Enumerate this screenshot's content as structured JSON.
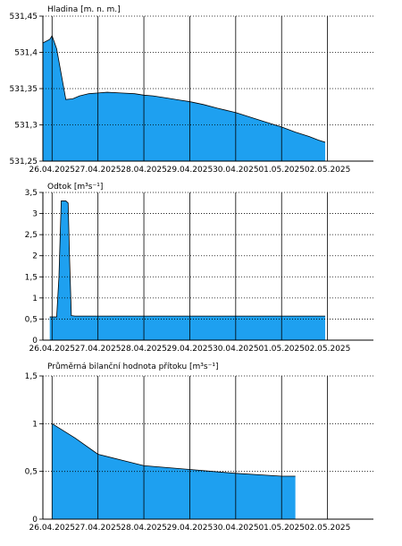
{
  "chart_data": [
    {
      "type": "area",
      "title": "Hladina [m. n. m.]",
      "x_ticks": [
        "26.04.2025",
        "27.04.2025",
        "28.04.2025",
        "29.04.2025",
        "30.04.2025",
        "01.05.2025",
        "02.05.2025"
      ],
      "y_tick_labels": [
        "531,25",
        "531,3",
        "531,35",
        "531,4",
        "531,45"
      ],
      "ylim": [
        531.25,
        531.45
      ],
      "xlim": [
        -0.2,
        7.0
      ],
      "grid": true,
      "color": "#1ea0f0",
      "x": [
        -0.2,
        -0.05,
        0.0,
        0.1,
        0.2,
        0.3,
        0.45,
        0.6,
        0.8,
        1.0,
        1.2,
        1.5,
        1.8,
        2.0,
        2.2,
        2.5,
        2.8,
        3.0,
        3.3,
        3.6,
        3.8,
        4.0,
        4.3,
        4.6,
        5.0,
        5.3,
        5.6,
        5.8,
        5.95
      ],
      "y": [
        531.413,
        531.418,
        531.423,
        531.405,
        531.37,
        531.335,
        531.336,
        531.34,
        531.343,
        531.344,
        531.345,
        531.344,
        531.343,
        531.341,
        531.34,
        531.337,
        531.334,
        531.332,
        531.328,
        531.323,
        531.32,
        531.317,
        531.311,
        531.305,
        531.297,
        531.29,
        531.284,
        531.279,
        531.276
      ]
    },
    {
      "type": "area",
      "title": "Odtok [m³s⁻¹]",
      "x_ticks": [
        "26.04.2025",
        "27.04.2025",
        "28.04.2025",
        "29.04.2025",
        "30.04.2025",
        "01.05.2025",
        "02.05.2025"
      ],
      "y_tick_labels": [
        "0",
        "0,5",
        "1",
        "1,5",
        "2",
        "2,5",
        "3",
        "3,5"
      ],
      "ylim": [
        0,
        3.5
      ],
      "xlim": [
        -0.2,
        7.0
      ],
      "grid": true,
      "color": "#1ea0f0",
      "x": [
        -0.05,
        0.0,
        0.1,
        0.15,
        0.2,
        0.3,
        0.35,
        0.38,
        0.42,
        0.5,
        1.0,
        2.0,
        3.0,
        4.0,
        5.0,
        5.95
      ],
      "y": [
        0.55,
        0.55,
        0.55,
        1.5,
        3.3,
        3.3,
        3.25,
        2.0,
        0.58,
        0.57,
        0.57,
        0.57,
        0.57,
        0.57,
        0.57,
        0.57
      ]
    },
    {
      "type": "area",
      "title": "Průměrná bilanční hodnota přítoku   [m³s⁻¹]",
      "x_ticks": [
        "26.04.2025",
        "27.04.2025",
        "28.04.2025",
        "29.04.2025",
        "30.04.2025",
        "01.05.2025",
        "02.05.2025"
      ],
      "y_tick_labels": [
        "0",
        "0,5",
        "1",
        "1,5"
      ],
      "ylim": [
        0,
        1.5
      ],
      "xlim": [
        -0.2,
        7.0
      ],
      "grid": true,
      "color": "#1ea0f0",
      "x": [
        0.0,
        0.5,
        1.0,
        1.5,
        2.0,
        2.5,
        3.0,
        3.5,
        4.0,
        4.5,
        5.0,
        5.3
      ],
      "y": [
        1.0,
        0.85,
        0.68,
        0.62,
        0.56,
        0.54,
        0.52,
        0.5,
        0.48,
        0.465,
        0.45,
        0.45
      ]
    }
  ]
}
